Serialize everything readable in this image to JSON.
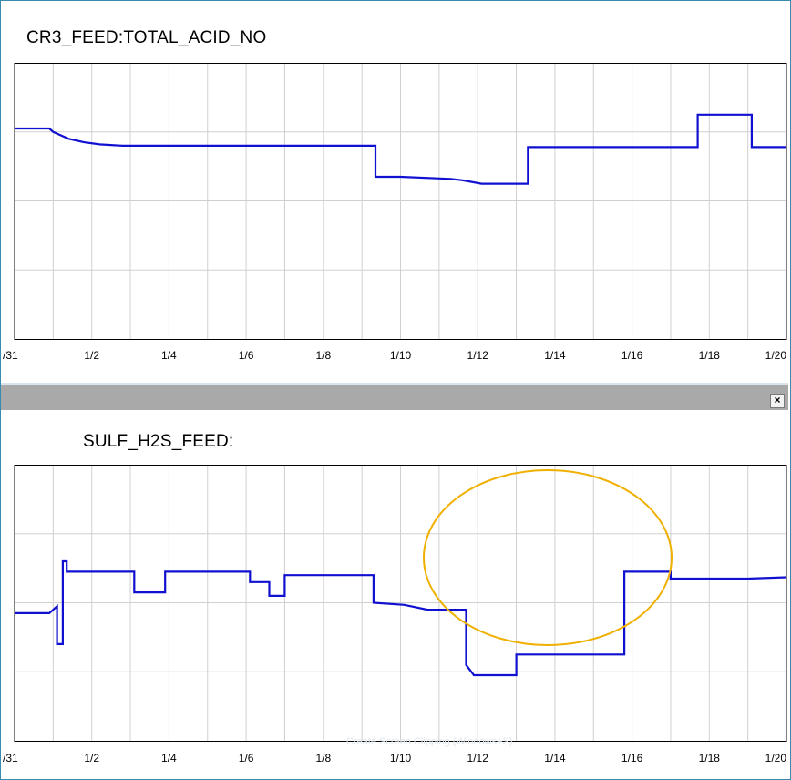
{
  "chart_data": [
    {
      "type": "line",
      "title": "CR3_FEED:TOTAL_ACID_NO",
      "x_tick_labels": [
        "/31",
        "1/2",
        "1/4",
        "1/6",
        "1/8",
        "1/10",
        "1/12",
        "1/14",
        "1/16",
        "1/18",
        "1/20"
      ],
      "x_range_days": [
        -1,
        19
      ],
      "y_range": [
        0,
        4
      ],
      "y_tick_count": 4,
      "grid": true,
      "series": [
        {
          "color": "#1010d0",
          "step": true,
          "x": [
            -1,
            -0.1,
            0,
            0.2,
            0.4,
            0.8,
            1.2,
            1.8,
            2.5,
            8.35,
            8.35,
            9,
            10.3,
            10.6,
            11.1,
            11.9,
            12.3,
            12.3,
            13.5,
            15.5,
            16.7,
            16.7,
            18.1,
            18.1,
            19
          ],
          "y": [
            3.05,
            3.05,
            3.0,
            2.95,
            2.9,
            2.85,
            2.82,
            2.8,
            2.8,
            2.8,
            2.35,
            2.35,
            2.32,
            2.3,
            2.25,
            2.25,
            2.25,
            2.78,
            2.78,
            2.78,
            2.78,
            3.25,
            3.25,
            2.78,
            2.78
          ]
        }
      ]
    },
    {
      "type": "line",
      "title": "SULF_H2S_FEED:",
      "x_tick_labels": [
        "/31",
        "1/2",
        "1/4",
        "1/6",
        "1/8",
        "1/10",
        "1/12",
        "1/14",
        "1/16",
        "1/18",
        "1/20"
      ],
      "x_range_days": [
        -1,
        19
      ],
      "y_range": [
        0,
        4
      ],
      "y_tick_count": 4,
      "grid": true,
      "annotations": [
        {
          "type": "ellipse",
          "color": "#f0b000",
          "label": ""
        }
      ],
      "series": [
        {
          "color": "#1010d0",
          "step": true,
          "x": [
            -1,
            -0.1,
            0.1,
            0.1,
            0.25,
            0.25,
            0.35,
            0.35,
            0.5,
            2.1,
            2.1,
            2.9,
            2.9,
            5.1,
            5.1,
            5.6,
            5.6,
            6.0,
            6.0,
            8.3,
            8.3,
            9.1,
            9.7,
            10.5,
            10.7,
            10.7,
            10.9,
            12.0,
            12.0,
            14.8,
            14.8,
            16.0,
            16.0,
            18.0,
            19
          ],
          "y": [
            1.85,
            1.85,
            1.95,
            1.4,
            1.4,
            2.6,
            2.6,
            2.45,
            2.45,
            2.45,
            2.15,
            2.15,
            2.45,
            2.45,
            2.3,
            2.3,
            2.1,
            2.1,
            2.4,
            2.4,
            2.0,
            1.97,
            1.9,
            1.9,
            1.9,
            1.1,
            0.95,
            0.95,
            1.25,
            1.25,
            2.45,
            2.45,
            2.35,
            2.35,
            2.37
          ]
        }
      ]
    }
  ],
  "ui": {
    "close_glyph": "×",
    "watermark": "Create Screen Clipping (Windows+S)"
  }
}
